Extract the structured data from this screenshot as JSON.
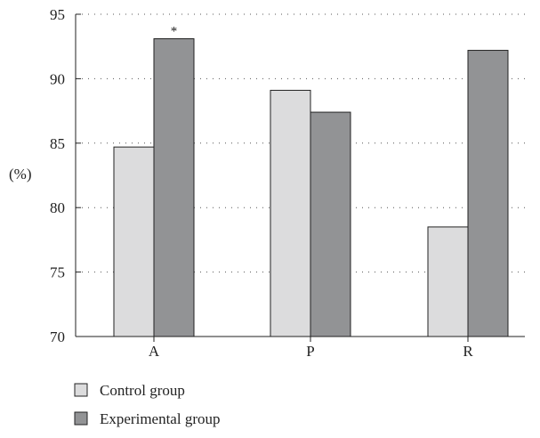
{
  "chart_data": {
    "type": "bar",
    "categories": [
      "A",
      "P",
      "R"
    ],
    "series": [
      {
        "name": "Control group",
        "values": [
          84.7,
          89.1,
          78.5
        ],
        "color": "#dcdcdd"
      },
      {
        "name": "Experimental group",
        "values": [
          93.1,
          87.4,
          92.2
        ],
        "color": "#929395"
      }
    ],
    "ylabel": "(%)",
    "xlabel": "",
    "ylim": [
      70,
      95
    ],
    "yticks": [
      70,
      75,
      80,
      85,
      90,
      95
    ],
    "grid": "dotted horizontal",
    "legend_position": "bottom-left",
    "annotations": [
      {
        "category": "A",
        "series": "Experimental group",
        "text": "*"
      }
    ]
  }
}
